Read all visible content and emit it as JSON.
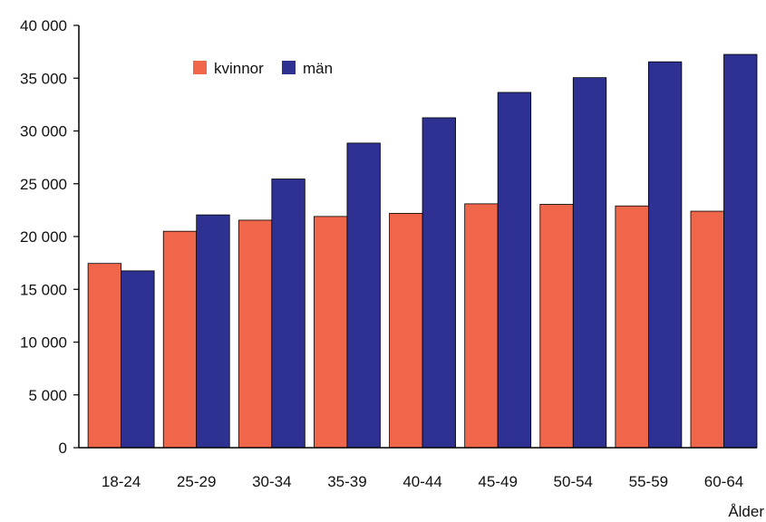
{
  "chart_data": {
    "type": "bar",
    "title": "",
    "xlabel": "Ålder",
    "ylabel": "",
    "categories": [
      "18-24",
      "25-29",
      "30-34",
      "35-39",
      "40-44",
      "45-49",
      "50-54",
      "55-59",
      "60-64"
    ],
    "series": [
      {
        "name": "kvinnor",
        "color": "#F0664A",
        "values": [
          17450,
          20500,
          21550,
          21900,
          22200,
          23100,
          23050,
          22900,
          22400
        ]
      },
      {
        "name": "män",
        "color": "#2E3192",
        "values": [
          16750,
          22050,
          25450,
          28850,
          31250,
          33650,
          35050,
          36550,
          37250
        ]
      }
    ],
    "ylim": [
      0,
      40000
    ],
    "yticks": [
      "0",
      "5 000",
      "10 000",
      "15 000",
      "20 000",
      "25 000",
      "30 000",
      "35 000",
      "40 000"
    ],
    "grid": false,
    "legend_position": "top-left"
  }
}
